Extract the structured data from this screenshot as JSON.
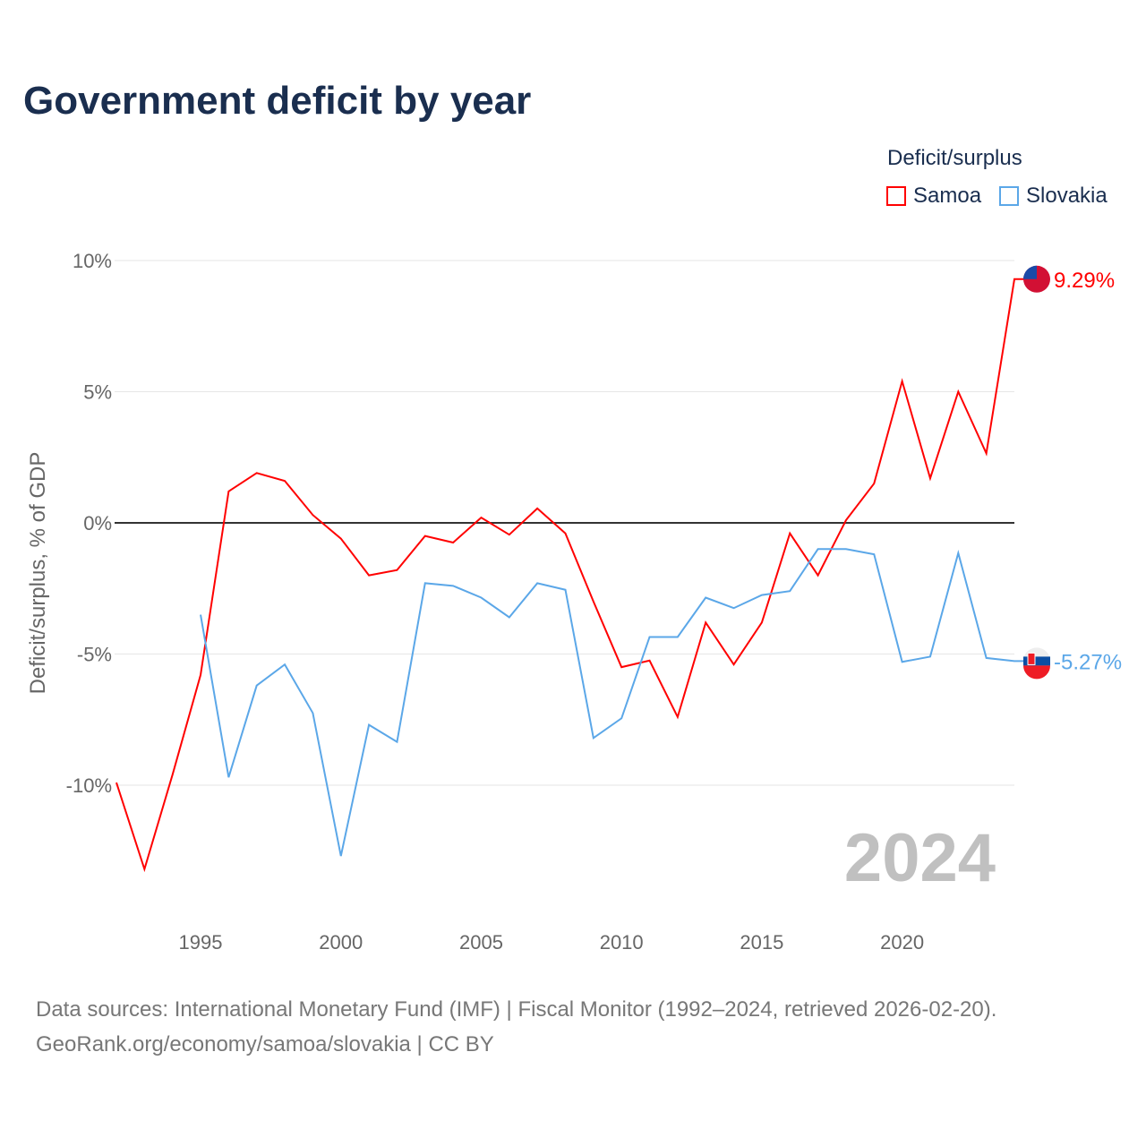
{
  "title": "Government deficit by year",
  "legend": {
    "title": "Deficit/surplus",
    "items": [
      {
        "name": "Samoa",
        "color": "#ff0000"
      },
      {
        "name": "Slovakia",
        "color": "#5ba7e8"
      }
    ]
  },
  "source_line1": "Data sources: International Monetary Fund (IMF) | Fiscal Monitor (1992–2024, retrieved 2026-02-20).",
  "source_line2": "GeoRank.org/economy/samoa/slovakia | CC BY",
  "chart_data": {
    "type": "line",
    "title": "Government deficit by year",
    "ylabel": "Deficit/surplus, % of GDP",
    "xlabel": "",
    "xlim": [
      1992,
      2024
    ],
    "ylim": [
      -14,
      10
    ],
    "x_ticks": [
      1995,
      2000,
      2005,
      2010,
      2015,
      2020
    ],
    "y_ticks": [
      {
        "v": 10,
        "label": "10%"
      },
      {
        "v": 5,
        "label": "5%"
      },
      {
        "v": 0,
        "label": "0%"
      },
      {
        "v": -5,
        "label": "-5%"
      },
      {
        "v": -10,
        "label": "-10%"
      }
    ],
    "year_annotation": "2024",
    "series": [
      {
        "name": "Samoa",
        "color": "#ff0000",
        "end_label": "9.29%",
        "start_year": 1992,
        "values": [
          -9.9,
          -13.2,
          -9.6,
          -5.8,
          1.2,
          1.9,
          1.6,
          0.3,
          -0.6,
          -2.0,
          -1.8,
          -0.5,
          -0.75,
          0.2,
          -0.45,
          0.55,
          -0.4,
          -3.0,
          -5.5,
          -5.25,
          -7.4,
          -3.8,
          -5.4,
          -3.8,
          -0.4,
          -2.0,
          0.1,
          1.5,
          5.4,
          1.7,
          5.0,
          2.65,
          9.29
        ]
      },
      {
        "name": "Slovakia",
        "color": "#5ba7e8",
        "end_label": "-5.27%",
        "start_year": 1995,
        "values": [
          -3.5,
          -9.7,
          -6.2,
          -5.4,
          -7.25,
          -12.7,
          -7.7,
          -8.35,
          -2.3,
          -2.4,
          -2.85,
          -3.6,
          -2.3,
          -2.55,
          -8.2,
          -7.45,
          -4.35,
          -4.35,
          -2.85,
          -3.25,
          -2.75,
          -2.6,
          -1.0,
          -1.0,
          -1.2,
          -5.3,
          -5.1,
          -1.15,
          -5.15,
          -5.27
        ]
      }
    ]
  }
}
